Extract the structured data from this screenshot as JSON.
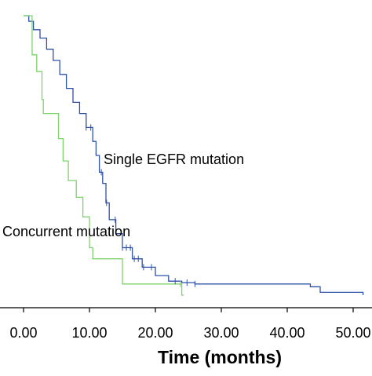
{
  "chart_data": {
    "type": "line",
    "title": "",
    "xlabel": "Time (months)",
    "ylabel": "",
    "xlim": [
      0,
      52
    ],
    "ylim": [
      0,
      1
    ],
    "x_tick_labels": [
      "0.00",
      "10.00",
      "20.00",
      "30.00",
      "40.00",
      "50.00"
    ],
    "x_ticks": [
      0,
      10,
      20,
      30,
      40,
      50
    ],
    "grid": false,
    "legend": "none",
    "annotations": [
      {
        "text": "Single EGFR mutation",
        "series": "single"
      },
      {
        "text": "Concurrent mutation",
        "series": "concurrent"
      }
    ],
    "series": [
      {
        "key": "single",
        "name": "Single EGFR mutation",
        "color": "#2f50a8",
        "x": [
          0,
          0.8,
          1.5,
          2.5,
          3.5,
          4.5,
          5.5,
          6.5,
          7.5,
          8.5,
          9.5,
          10.5,
          11.0,
          11.5,
          12.0,
          12.5,
          13.0,
          14.0,
          15.0,
          16.5,
          18.0,
          20.0,
          22.0,
          24.0,
          26.0,
          28.0,
          30.0,
          35.0,
          40.0,
          43.5,
          45.0,
          51.5
        ],
        "y": [
          1.0,
          0.98,
          0.95,
          0.92,
          0.88,
          0.84,
          0.79,
          0.74,
          0.69,
          0.65,
          0.6,
          0.55,
          0.5,
          0.44,
          0.4,
          0.33,
          0.27,
          0.22,
          0.17,
          0.13,
          0.1,
          0.07,
          0.05,
          0.045,
          0.04,
          0.04,
          0.04,
          0.04,
          0.04,
          0.03,
          0.01,
          0.0
        ]
      },
      {
        "key": "concurrent",
        "name": "Concurrent mutation",
        "color": "#7ed36b",
        "x": [
          0,
          1.0,
          1.3,
          2.0,
          2.8,
          3.0,
          4.5,
          5.3,
          6.0,
          6.8,
          8.0,
          9.0,
          10.0,
          10.5,
          11.0,
          13.0,
          15.0,
          20.0,
          23.5,
          24.0,
          24.3
        ],
        "y": [
          1.0,
          1.0,
          0.86,
          0.8,
          0.7,
          0.65,
          0.65,
          0.56,
          0.48,
          0.41,
          0.35,
          0.28,
          0.17,
          0.13,
          0.13,
          0.13,
          0.04,
          0.04,
          0.04,
          0.0,
          0.0
        ]
      }
    ],
    "censor_marks": {
      "single": [
        9.5,
        10.2,
        11.8,
        12.6,
        13.9,
        15.0,
        15.6,
        16.2,
        16.8,
        17.4,
        18.2,
        19.4,
        23.0,
        24.8,
        26.0
      ],
      "concurrent": [
        23.8
      ]
    }
  }
}
